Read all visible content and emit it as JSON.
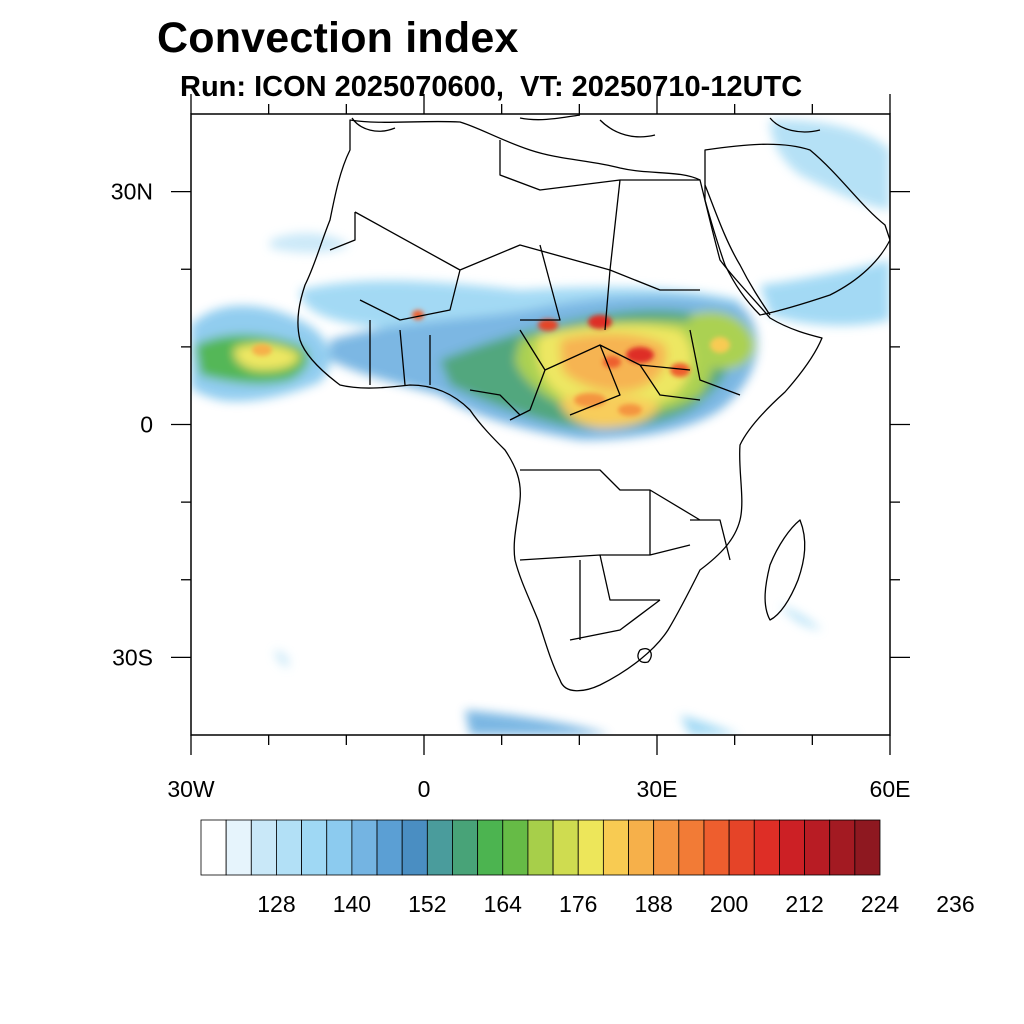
{
  "title": "Convection index",
  "subtitle": "Run: ICON 2025070600,  VT: 20250710-12UTC",
  "map": {
    "projection": "cylindrical-equidistant",
    "lon_range": [
      -30,
      60
    ],
    "lat_range": [
      -40,
      40
    ],
    "lon_ticks": [
      {
        "value": -30,
        "label": "30W"
      },
      {
        "value": 0,
        "label": "0"
      },
      {
        "value": 30,
        "label": "30E"
      },
      {
        "value": 60,
        "label": "60E"
      }
    ],
    "lat_ticks": [
      {
        "value": 30,
        "label": "30N"
      },
      {
        "value": 0,
        "label": "0"
      },
      {
        "value": -30,
        "label": "30S"
      }
    ],
    "minor_lon_ticks": [
      -20,
      -10,
      10,
      20,
      40,
      50
    ],
    "minor_lat_ticks": [
      20,
      10,
      -10,
      -20
    ]
  },
  "colorbar": {
    "labels": [
      "128",
      "140",
      "152",
      "164",
      "176",
      "188",
      "200",
      "212",
      "224",
      "236"
    ],
    "colors": [
      "#ffffff",
      "#e6f4fc",
      "#c9e8f8",
      "#b2e0f6",
      "#9fd8f4",
      "#8ccbef",
      "#74b4e2",
      "#5b9fd4",
      "#4a8ec2",
      "#4a9c9c",
      "#48a378",
      "#4cb450",
      "#66bb46",
      "#a7cf4a",
      "#cfdc50",
      "#ede65a",
      "#f8cb52",
      "#f6b04a",
      "#f49440",
      "#f27b36",
      "#ee5e2e",
      "#e54428",
      "#de2e26",
      "#cc2025",
      "#b81c24",
      "#a31a22",
      "#8e1820"
    ]
  }
}
